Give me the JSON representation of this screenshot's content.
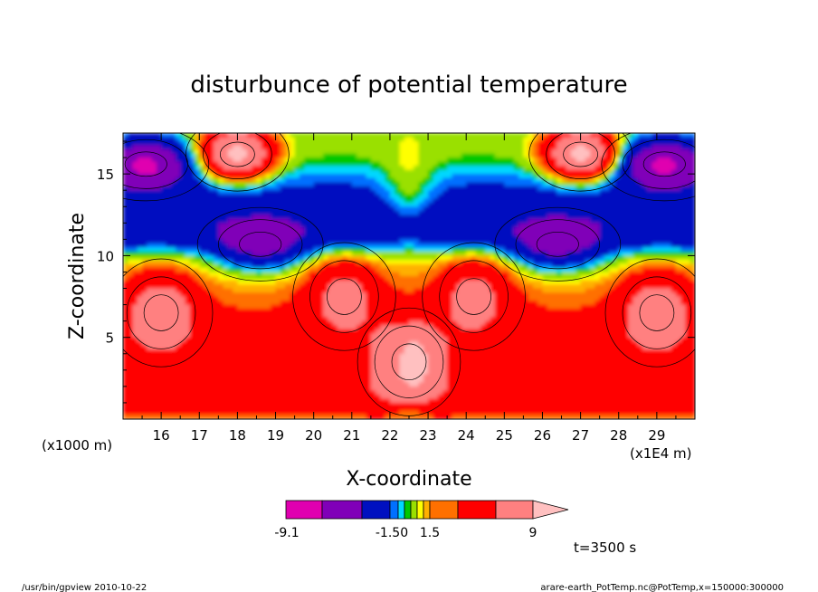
{
  "chart_data": {
    "type": "heatmap",
    "title": "disturbunce of potential temperature",
    "xlabel": "X-coordinate",
    "ylabel": "Z-coordinate",
    "x_unit": "(x1E4 m)",
    "y_unit": "(x1000 m)",
    "xlim": [
      15.0,
      30.0
    ],
    "ylim": [
      0.0,
      17.5
    ],
    "x_ticks": [
      16,
      17,
      18,
      19,
      20,
      21,
      22,
      23,
      24,
      25,
      26,
      27,
      28,
      29
    ],
    "y_ticks": [
      5,
      10,
      15
    ],
    "colorbar": {
      "labels": [
        "-9.1",
        "-1.50",
        "1.5",
        "9"
      ],
      "colors": [
        "#e000b0",
        "#8000b8",
        "#0010c0",
        "#0070ff",
        "#00d8ff",
        "#00c800",
        "#9ae000",
        "#ffff00",
        "#ffb000",
        "#ff7000",
        "#ff0000",
        "#ff8080",
        "#ffc0c0"
      ]
    },
    "features": [
      {
        "kind": "warm",
        "value": 8,
        "x": 18.0,
        "z": 16.2
      },
      {
        "kind": "warm",
        "value": 8,
        "x": 27.0,
        "z": 16.2
      },
      {
        "kind": "cold",
        "value": -7,
        "x": 15.6,
        "z": 15.6
      },
      {
        "kind": "cold",
        "value": -7,
        "x": 29.2,
        "z": 15.6
      },
      {
        "kind": "cold",
        "value": -4,
        "x": 18.6,
        "z": 10.7
      },
      {
        "kind": "cold",
        "value": -4,
        "x": 26.4,
        "z": 10.7
      },
      {
        "kind": "warm",
        "value": 5,
        "x": 16.0,
        "z": 6.5
      },
      {
        "kind": "warm",
        "value": 5,
        "x": 29.0,
        "z": 6.5
      },
      {
        "kind": "warm",
        "value": 6,
        "x": 22.5,
        "z": 3.5
      },
      {
        "kind": "warm",
        "value": 4,
        "x": 20.8,
        "z": 7.5
      },
      {
        "kind": "warm",
        "value": 4,
        "x": 24.2,
        "z": 7.5
      }
    ],
    "time_label": "t=3500 s"
  },
  "footer": {
    "left": "/usr/bin/gpview   2010-10-22",
    "right": "arare-earth_PotTemp.nc@PotTemp,x=150000:300000"
  }
}
